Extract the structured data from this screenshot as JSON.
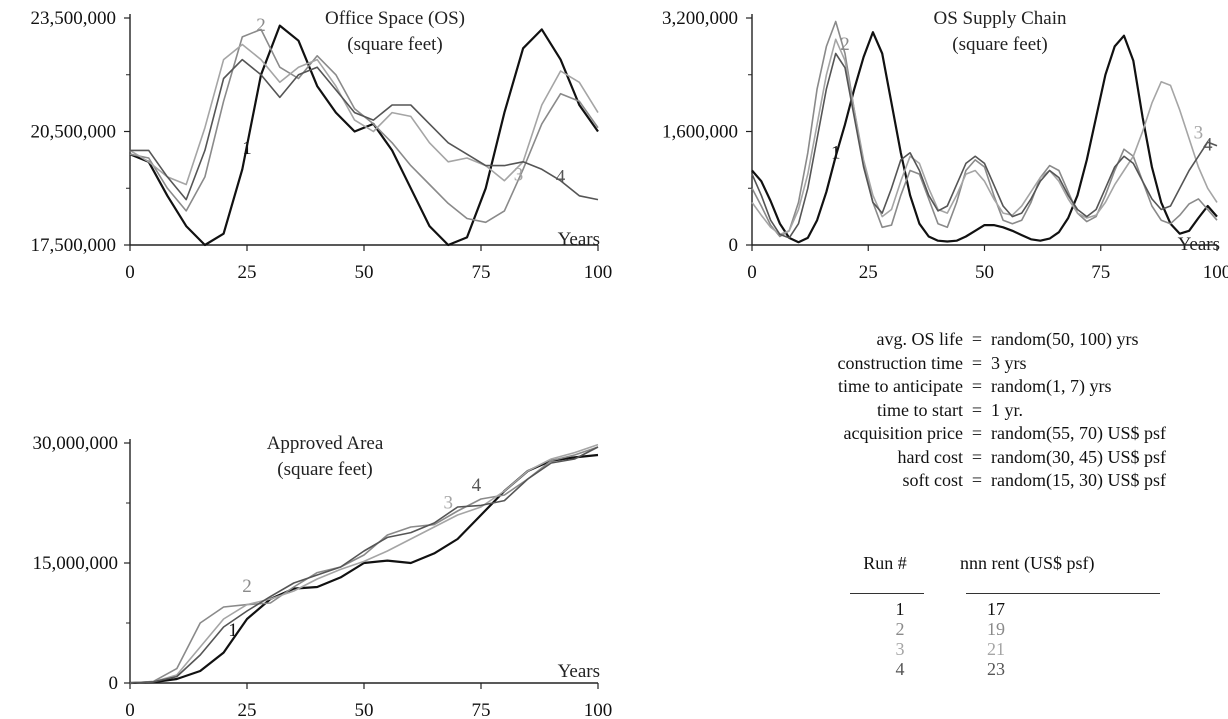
{
  "colors": {
    "run1": "#111111",
    "run2": "#8a8a8a",
    "run3": "#a5a5a5",
    "run4": "#555555",
    "axis": "#222222"
  },
  "chart_data": [
    {
      "type": "line",
      "title": "Office Space (OS)",
      "subtitle": "(square feet)",
      "xlabel": "Years",
      "ylabel": "",
      "xlim": [
        0,
        100
      ],
      "ylim": [
        17500000,
        23500000
      ],
      "x_ticks": [
        0,
        25,
        50,
        75,
        100
      ],
      "x_tick_labels": [
        "0",
        "25",
        "50",
        "75",
        "100"
      ],
      "y_ticks": [
        17500000,
        20500000,
        23500000
      ],
      "y_tick_labels": [
        "17,500,000",
        "20,500,000",
        "23,500,000"
      ],
      "run_labels": [
        {
          "text": "1",
          "x": 25,
          "y": 19900000,
          "series": 0
        },
        {
          "text": "2",
          "x": 28,
          "y": 23150000,
          "series": 1
        },
        {
          "text": "3",
          "x": 83,
          "y": 19200000,
          "series": 2
        },
        {
          "text": "4",
          "x": 92,
          "y": 19150000,
          "series": 3
        }
      ],
      "series": [
        {
          "x": [
            0,
            4,
            8,
            12,
            16,
            20,
            24,
            28,
            32,
            36,
            40,
            44,
            48,
            52,
            56,
            60,
            64,
            68,
            72,
            76,
            80,
            84,
            88,
            92,
            96,
            100
          ],
          "values": [
            19900000,
            19700000,
            18800000,
            18000000,
            17500000,
            17800000,
            19500000,
            22000000,
            23300000,
            22900000,
            21700000,
            21000000,
            20500000,
            20700000,
            20000000,
            19000000,
            18000000,
            17500000,
            17700000,
            19000000,
            21000000,
            22700000,
            23200000,
            22400000,
            21200000,
            20500000
          ]
        },
        {
          "x": [
            0,
            4,
            8,
            12,
            16,
            20,
            24,
            28,
            32,
            36,
            40,
            44,
            48,
            52,
            56,
            60,
            64,
            68,
            72,
            76,
            80,
            84,
            88,
            92,
            96,
            100
          ],
          "values": [
            19900000,
            19800000,
            19000000,
            18400000,
            19300000,
            21300000,
            23000000,
            23200000,
            22200000,
            21900000,
            22500000,
            22000000,
            21100000,
            20700000,
            20200000,
            19600000,
            19100000,
            18600000,
            18200000,
            18100000,
            18400000,
            19500000,
            20700000,
            21500000,
            21300000,
            20600000
          ]
        },
        {
          "x": [
            0,
            4,
            8,
            12,
            16,
            20,
            24,
            28,
            32,
            36,
            40,
            44,
            48,
            52,
            56,
            60,
            64,
            68,
            72,
            76,
            80,
            84,
            88,
            92,
            96,
            100
          ],
          "values": [
            20000000,
            19700000,
            19300000,
            19100000,
            20600000,
            22400000,
            22800000,
            22400000,
            21800000,
            22200000,
            22400000,
            21700000,
            20800000,
            20500000,
            21000000,
            20900000,
            20200000,
            19700000,
            19800000,
            19600000,
            19200000,
            19700000,
            21200000,
            22100000,
            21800000,
            21000000
          ]
        },
        {
          "x": [
            0,
            4,
            8,
            12,
            16,
            20,
            24,
            28,
            32,
            36,
            40,
            44,
            48,
            52,
            56,
            60,
            64,
            68,
            72,
            76,
            80,
            84,
            88,
            92,
            96,
            100
          ],
          "values": [
            20000000,
            20000000,
            19300000,
            18700000,
            20000000,
            21900000,
            22400000,
            22000000,
            21400000,
            22000000,
            22200000,
            21600000,
            21000000,
            20800000,
            21200000,
            21200000,
            20700000,
            20200000,
            19900000,
            19600000,
            19600000,
            19700000,
            19500000,
            19200000,
            18800000,
            18700000
          ]
        }
      ]
    },
    {
      "type": "line",
      "title": "OS Supply Chain",
      "subtitle": "(square feet)",
      "xlabel": "Years",
      "ylabel": "",
      "xlim": [
        0,
        100
      ],
      "ylim": [
        0,
        3200000
      ],
      "x_ticks": [
        0,
        25,
        50,
        75,
        100
      ],
      "x_tick_labels": [
        "0",
        "25",
        "50",
        "75",
        "100"
      ],
      "y_ticks": [
        0,
        1600000,
        3200000
      ],
      "y_tick_labels": [
        "0",
        "1,600,000",
        "3,200,000"
      ],
      "run_labels": [
        {
          "text": "1",
          "x": 18,
          "y": 1220000,
          "series": 0
        },
        {
          "text": "2",
          "x": 20,
          "y": 2750000,
          "series": 1
        },
        {
          "text": "3",
          "x": 96,
          "y": 1500000,
          "series": 2
        },
        {
          "text": "4",
          "x": 98,
          "y": 1330000,
          "series": 3
        }
      ],
      "series": [
        {
          "x": [
            0,
            2,
            4,
            6,
            8,
            10,
            12,
            14,
            16,
            18,
            20,
            22,
            24,
            26,
            28,
            30,
            32,
            34,
            36,
            38,
            40,
            42,
            44,
            46,
            48,
            50,
            52,
            54,
            56,
            58,
            60,
            62,
            64,
            66,
            68,
            70,
            72,
            74,
            76,
            78,
            80,
            82,
            84,
            86,
            88,
            90,
            92,
            94,
            96,
            98,
            100
          ],
          "values": [
            1050000,
            900000,
            620000,
            300000,
            100000,
            40000,
            100000,
            350000,
            750000,
            1250000,
            1700000,
            2200000,
            2650000,
            3000000,
            2700000,
            2000000,
            1300000,
            700000,
            300000,
            120000,
            60000,
            50000,
            60000,
            120000,
            200000,
            280000,
            280000,
            250000,
            200000,
            140000,
            80000,
            60000,
            90000,
            180000,
            380000,
            700000,
            1200000,
            1800000,
            2400000,
            2800000,
            2950000,
            2600000,
            1800000,
            1100000,
            600000,
            300000,
            160000,
            200000,
            380000,
            550000,
            400000
          ]
        },
        {
          "x": [
            0,
            2,
            4,
            6,
            8,
            10,
            12,
            14,
            16,
            18,
            20,
            22,
            24,
            26,
            28,
            30,
            32,
            34,
            36,
            38,
            40,
            42,
            44,
            46,
            48,
            50,
            52,
            54,
            56,
            58,
            60,
            62,
            64,
            66,
            68,
            70,
            72,
            74,
            76,
            78,
            80,
            82,
            84,
            86,
            88,
            90,
            92,
            94,
            96,
            98,
            100
          ],
          "values": [
            800000,
            550000,
            280000,
            120000,
            200000,
            600000,
            1300000,
            2200000,
            2800000,
            3150000,
            2700000,
            1900000,
            1150000,
            600000,
            250000,
            280000,
            700000,
            1050000,
            1000000,
            650000,
            300000,
            250000,
            600000,
            1050000,
            1200000,
            1100000,
            700000,
            350000,
            300000,
            350000,
            600000,
            950000,
            1120000,
            1050000,
            750000,
            450000,
            330000,
            400000,
            700000,
            1050000,
            1350000,
            1250000,
            900000,
            550000,
            350000,
            300000,
            420000,
            580000,
            650000,
            500000,
            350000
          ]
        },
        {
          "x": [
            0,
            2,
            4,
            6,
            8,
            10,
            12,
            14,
            16,
            18,
            20,
            22,
            24,
            26,
            28,
            30,
            32,
            34,
            36,
            38,
            40,
            42,
            44,
            46,
            48,
            50,
            52,
            54,
            56,
            58,
            60,
            62,
            64,
            66,
            68,
            70,
            72,
            74,
            76,
            78,
            80,
            82,
            84,
            86,
            88,
            90,
            92,
            94,
            96,
            98,
            100
          ],
          "values": [
            600000,
            420000,
            250000,
            150000,
            200000,
            500000,
            1000000,
            1700000,
            2400000,
            2900000,
            2600000,
            1900000,
            1200000,
            700000,
            400000,
            500000,
            900000,
            1250000,
            1150000,
            800000,
            500000,
            450000,
            700000,
            1000000,
            1050000,
            900000,
            650000,
            450000,
            420000,
            550000,
            750000,
            950000,
            1050000,
            900000,
            650000,
            450000,
            380000,
            420000,
            600000,
            850000,
            1050000,
            1250000,
            1600000,
            2000000,
            2300000,
            2250000,
            1900000,
            1500000,
            1100000,
            800000,
            600000
          ]
        },
        {
          "x": [
            0,
            2,
            4,
            6,
            8,
            10,
            12,
            14,
            16,
            18,
            20,
            22,
            24,
            26,
            28,
            30,
            32,
            34,
            36,
            38,
            40,
            42,
            44,
            46,
            48,
            50,
            52,
            54,
            56,
            58,
            60,
            62,
            64,
            66,
            68,
            70,
            72,
            74,
            76,
            78,
            80,
            82,
            84,
            86,
            88,
            90,
            92,
            94,
            96,
            98,
            100
          ],
          "values": [
            1000000,
            700000,
            350000,
            150000,
            100000,
            300000,
            800000,
            1500000,
            2200000,
            2700000,
            2500000,
            1800000,
            1100000,
            600000,
            450000,
            800000,
            1200000,
            1300000,
            1050000,
            700000,
            480000,
            550000,
            850000,
            1150000,
            1250000,
            1150000,
            850000,
            550000,
            400000,
            450000,
            650000,
            900000,
            1050000,
            950000,
            700000,
            500000,
            400000,
            500000,
            800000,
            1100000,
            1250000,
            1150000,
            900000,
            650000,
            500000,
            550000,
            800000,
            1050000,
            1250000,
            1450000,
            1400000
          ]
        }
      ]
    },
    {
      "type": "line",
      "title": "Approved Area",
      "subtitle": "(square feet)",
      "xlabel": "Years",
      "ylabel": "",
      "xlim": [
        0,
        100
      ],
      "ylim": [
        0,
        30000000
      ],
      "x_ticks": [
        0,
        25,
        50,
        75,
        100
      ],
      "x_tick_labels": [
        "0",
        "25",
        "50",
        "75",
        "100"
      ],
      "y_ticks": [
        0,
        15000000,
        30000000
      ],
      "y_tick_labels": [
        "0",
        "15,000,000",
        "30,000,000"
      ],
      "run_labels": [
        {
          "text": "1",
          "x": 22,
          "y": 5900000,
          "series": 0
        },
        {
          "text": "2",
          "x": 25,
          "y": 11400000,
          "series": 1
        },
        {
          "text": "3",
          "x": 68,
          "y": 21800000,
          "series": 2
        },
        {
          "text": "4",
          "x": 74,
          "y": 24000000,
          "series": 3
        }
      ],
      "series": [
        {
          "x": [
            0,
            5,
            10,
            15,
            20,
            25,
            30,
            35,
            40,
            45,
            50,
            55,
            60,
            65,
            70,
            75,
            80,
            85,
            90,
            95,
            100
          ],
          "values": [
            0,
            100000,
            500000,
            1500000,
            3800000,
            8000000,
            10500000,
            11800000,
            12000000,
            13200000,
            15000000,
            15300000,
            15000000,
            16200000,
            18000000,
            21000000,
            24000000,
            26500000,
            27800000,
            28200000,
            28500000
          ]
        },
        {
          "x": [
            0,
            5,
            10,
            15,
            20,
            25,
            30,
            35,
            40,
            45,
            50,
            55,
            60,
            65,
            70,
            75,
            80,
            85,
            90,
            95,
            100
          ],
          "values": [
            0,
            200000,
            1800000,
            7500000,
            9500000,
            9800000,
            10000000,
            12000000,
            13800000,
            14500000,
            16000000,
            18500000,
            19500000,
            19800000,
            21500000,
            23000000,
            23500000,
            25500000,
            27800000,
            28500000,
            29500000
          ]
        },
        {
          "x": [
            0,
            5,
            10,
            15,
            20,
            25,
            30,
            35,
            40,
            45,
            50,
            55,
            60,
            65,
            70,
            75,
            80,
            85,
            90,
            95,
            100
          ],
          "values": [
            0,
            150000,
            1000000,
            4500000,
            8000000,
            9800000,
            10500000,
            11500000,
            13000000,
            14200000,
            15200000,
            16500000,
            18000000,
            19500000,
            21000000,
            22000000,
            24000000,
            26500000,
            28000000,
            28800000,
            29800000
          ]
        },
        {
          "x": [
            0,
            5,
            10,
            15,
            20,
            25,
            30,
            35,
            40,
            45,
            50,
            55,
            60,
            65,
            70,
            75,
            80,
            85,
            90,
            95,
            100
          ],
          "values": [
            0,
            150000,
            800000,
            3500000,
            7000000,
            9000000,
            10800000,
            12500000,
            13500000,
            14500000,
            16500000,
            18200000,
            18800000,
            20000000,
            22000000,
            22200000,
            22800000,
            25500000,
            27500000,
            28000000,
            29500000
          ]
        }
      ]
    }
  ],
  "parameters": [
    {
      "name": "avg. OS life",
      "eq": "=",
      "value": "random(50, 100) yrs"
    },
    {
      "name": "construction time",
      "eq": "=",
      "value": "3 yrs"
    },
    {
      "name": "time to anticipate",
      "eq": "=",
      "value": "random(1, 7) yrs"
    },
    {
      "name": "time to start",
      "eq": "=",
      "value": "1 yr."
    },
    {
      "name": "acquisition price",
      "eq": "=",
      "value": "random(55, 70) US$ psf"
    },
    {
      "name": "hard cost",
      "eq": "=",
      "value": "random(30, 45) US$ psf"
    },
    {
      "name": "soft cost",
      "eq": "=",
      "value": "random(15, 30) US$ psf"
    }
  ],
  "run_table": {
    "headers": [
      "Run #",
      "nnn rent (US$ psf)"
    ],
    "rows": [
      {
        "run": "1",
        "rent": "17"
      },
      {
        "run": "2",
        "rent": "19"
      },
      {
        "run": "3",
        "rent": "21"
      },
      {
        "run": "4",
        "rent": "23"
      }
    ]
  }
}
